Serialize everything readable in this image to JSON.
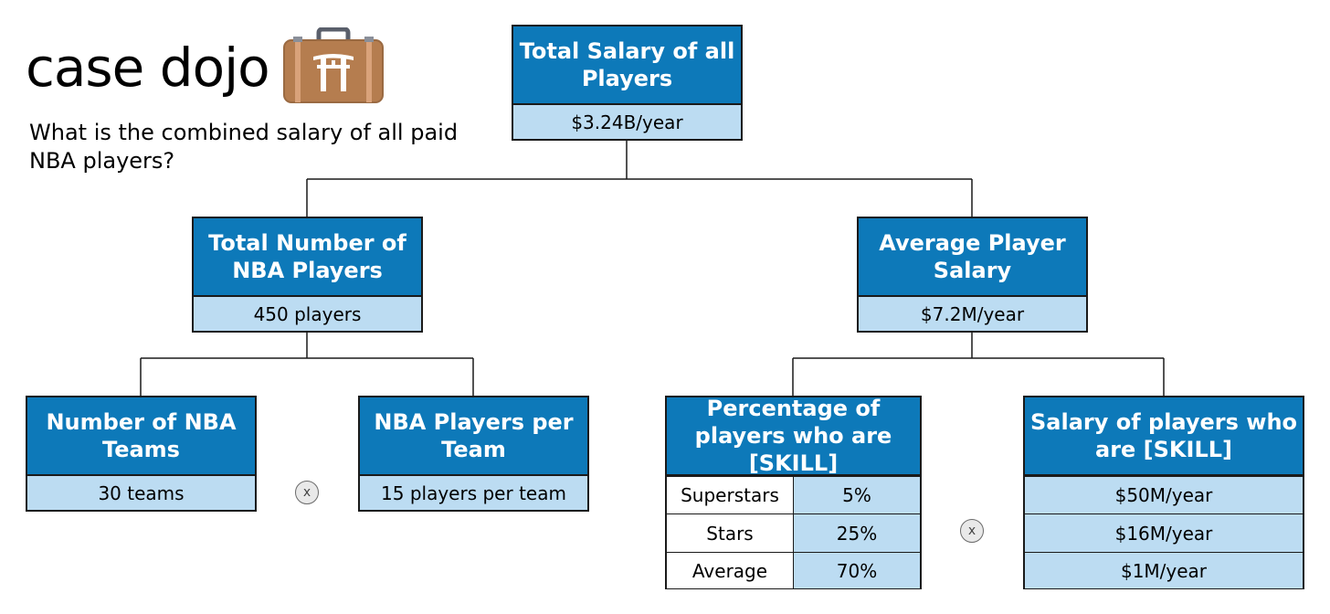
{
  "brand": {
    "name": "case dojo",
    "logo_icon": "torii-briefcase-icon"
  },
  "question": "What is the combined salary of all paid NBA players?",
  "colors": {
    "header": "#0d79b9",
    "value": "#bcdcf2",
    "border": "#1a1a1a"
  },
  "tree": {
    "root": {
      "title": "Total Salary of all Players",
      "value": "$3.24B/year"
    },
    "players": {
      "title": "Total Number of NBA Players",
      "value": "450 players"
    },
    "avg_salary": {
      "title": "Average Player Salary",
      "value": "$7.2M/year"
    },
    "teams": {
      "title": "Number of NBA Teams",
      "value": "30 teams"
    },
    "per_team": {
      "title": "NBA Players per Team",
      "value": "15 players per team"
    },
    "pct_skill": {
      "title": "Percentage of players who are [SKILL]",
      "rows": [
        {
          "label": "Superstars",
          "value": "5%"
        },
        {
          "label": "Stars",
          "value": "25%"
        },
        {
          "label": "Average",
          "value": "70%"
        }
      ]
    },
    "sal_skill": {
      "title": "Salary of players who are [SKILL]",
      "rows": [
        {
          "value": "$50M/year"
        },
        {
          "value": "$16M/year"
        },
        {
          "value": "$1M/year"
        }
      ]
    }
  },
  "operators": {
    "players_op": "x",
    "salary_op": "x"
  }
}
